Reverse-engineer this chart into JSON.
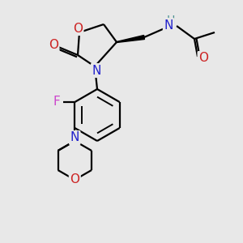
{
  "bg_color": "#e8e8e8",
  "atom_colors": {
    "N": "#2222cc",
    "O": "#cc2222",
    "F": "#cc44cc",
    "H": "#4a9090"
  },
  "bond_color": "#000000"
}
